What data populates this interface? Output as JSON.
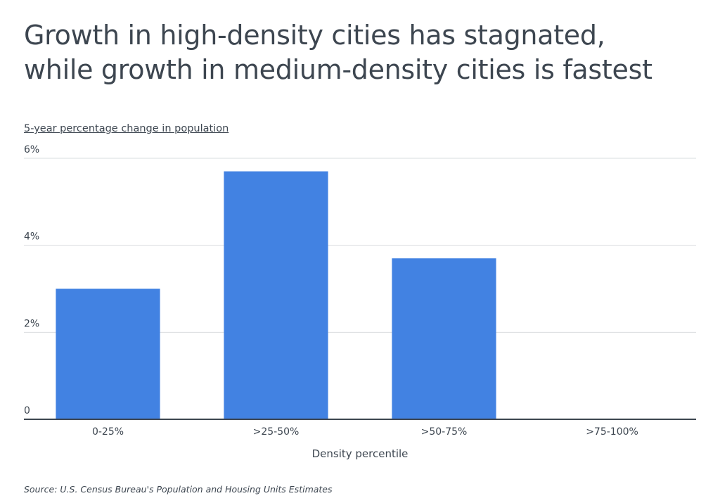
{
  "title_lines": [
    "Growth in high-density cities has stagnated,",
    "while growth in medium-density cities is fastest"
  ],
  "source": "Source:  U.S. Census Bureau's Population and Housing Units Estimates",
  "colors": {
    "bar": "#4282e2",
    "grid": "#d9dcdf",
    "axis": "#3d4650",
    "text": "#3d4650"
  },
  "chart_data": {
    "type": "bar",
    "title": "Growth in high-density cities has stagnated, while growth in medium-density cities is fastest",
    "ylabel": "5-year percentage change in population",
    "xlabel": "Density percentile",
    "categories": [
      "0-25%",
      ">25-50%",
      ">50-75%",
      ">75-100%"
    ],
    "values": [
      3.0,
      5.7,
      3.7,
      0.0
    ],
    "ylim": [
      0,
      6
    ],
    "yticks": [
      0,
      2,
      4,
      6
    ],
    "ytick_labels": [
      "0",
      "2%",
      "4%",
      "6%"
    ],
    "grid": true,
    "legend": "none"
  }
}
